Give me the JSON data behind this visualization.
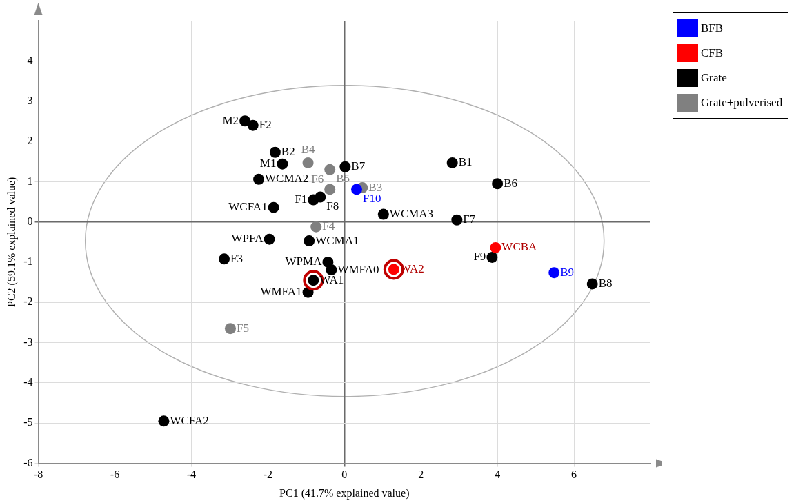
{
  "chart_data": {
    "type": "scatter",
    "xlabel": "PC1 (41.7% explained value)",
    "ylabel": "PC2 (59.1% explained value)",
    "xlim": [
      -8,
      8
    ],
    "xticks": [
      -8,
      -6,
      -4,
      -2,
      0,
      2,
      4,
      6
    ],
    "ylim": [
      -6,
      5
    ],
    "yticks": [
      -6,
      -5,
      -4,
      -3,
      -2,
      -1,
      0,
      1,
      2,
      3,
      4
    ],
    "grid": true,
    "legend": "top right",
    "marker": "circle",
    "series": [
      {
        "name": "BFB",
        "color": "#0000ff",
        "x": [
          0.32,
          5.48
        ],
        "values": [
          0.81,
          -1.26
        ]
      },
      {
        "name": "CFB",
        "color": "#ff0000",
        "x": [
          3.95,
          1.29
        ],
        "values": [
          -0.64,
          -1.18
        ]
      },
      {
        "name": "Grate",
        "color": "#000000",
        "x": [
          -2.6,
          -2.39,
          -1.81,
          -1.62,
          -2.24,
          -1.85,
          0.02,
          -0.81,
          -0.63,
          1.02,
          2.82,
          4.0,
          2.94,
          -1.96,
          -0.92,
          -3.14,
          -0.43,
          -0.34,
          -0.81,
          -0.95,
          3.86,
          6.48,
          -4.72
        ],
        "values": [
          2.51,
          2.4,
          1.73,
          1.44,
          1.06,
          0.36,
          1.37,
          0.55,
          0.62,
          0.19,
          1.47,
          0.95,
          0.05,
          -0.43,
          -0.47,
          -0.92,
          -1.0,
          -1.19,
          -1.45,
          -1.75,
          -0.88,
          -1.54,
          -4.95
        ]
      },
      {
        "name": "Grate+pulverised",
        "color": "#808080",
        "x": [
          -0.95,
          -0.38,
          -0.38,
          0.47,
          -0.74,
          -2.98
        ],
        "values": [
          1.47,
          1.3,
          0.81,
          0.85,
          -0.12,
          -2.65
        ]
      },
      {
        "color": "#c00000",
        "x": [
          -0.81,
          1.29
        ],
        "values": [
          -1.45,
          -1.18
        ]
      }
    ],
    "annotations": [
      {
        "text": "F10",
        "x": 0.32,
        "y": 0.81
      },
      {
        "text": "B9",
        "x": 5.48,
        "y": -1.26
      },
      {
        "text": "WCBA",
        "x": 3.95,
        "y": -0.64
      },
      {
        "text": "WA2",
        "x": 1.29,
        "y": -1.18
      },
      {
        "text": "M2",
        "x": -2.6,
        "y": 2.51
      },
      {
        "text": "F2",
        "x": -2.39,
        "y": 2.4
      },
      {
        "text": "B2",
        "x": -1.81,
        "y": 1.73
      },
      {
        "text": "M1",
        "x": -1.62,
        "y": 1.44
      },
      {
        "text": "WCMA2",
        "x": -2.24,
        "y": 1.06
      },
      {
        "text": "WCFA1",
        "x": -1.85,
        "y": 0.36
      },
      {
        "text": "B7",
        "x": 0.02,
        "y": 1.37
      },
      {
        "text": "F1",
        "x": -0.81,
        "y": 0.55
      },
      {
        "text": "F8",
        "x": -0.63,
        "y": 0.62
      },
      {
        "text": "WCMA3",
        "x": 1.02,
        "y": 0.19
      },
      {
        "text": "B1",
        "x": 2.82,
        "y": 1.47
      },
      {
        "text": "B6",
        "x": 4.0,
        "y": 0.95
      },
      {
        "text": "F7",
        "x": 2.94,
        "y": 0.05
      },
      {
        "text": "WPFA",
        "x": -1.96,
        "y": -0.43
      },
      {
        "text": "WCMA1",
        "x": -0.92,
        "y": -0.47
      },
      {
        "text": "F3",
        "x": -3.14,
        "y": -0.92
      },
      {
        "text": "WPMA",
        "x": -0.43,
        "y": -1.0
      },
      {
        "text": "WMFA0",
        "x": -0.34,
        "y": -1.19
      },
      {
        "text": "WA1",
        "x": -0.81,
        "y": -1.45
      },
      {
        "text": "WMFA1",
        "x": -0.95,
        "y": -1.75
      },
      {
        "text": "F9",
        "x": 3.86,
        "y": -0.88
      },
      {
        "text": "B8",
        "x": 6.48,
        "y": -1.54
      },
      {
        "text": "WCFA2",
        "x": -4.72,
        "y": -4.95
      },
      {
        "text": "B4",
        "x": -0.95,
        "y": 1.47
      },
      {
        "text": "B5",
        "x": -0.38,
        "y": 1.3
      },
      {
        "text": "F6",
        "x": -0.38,
        "y": 0.81
      },
      {
        "text": "B3",
        "x": 0.47,
        "y": 0.85
      },
      {
        "text": "F4",
        "x": -0.74,
        "y": -0.12
      },
      {
        "text": "F5",
        "x": -2.98,
        "y": -2.65
      }
    ]
  }
}
